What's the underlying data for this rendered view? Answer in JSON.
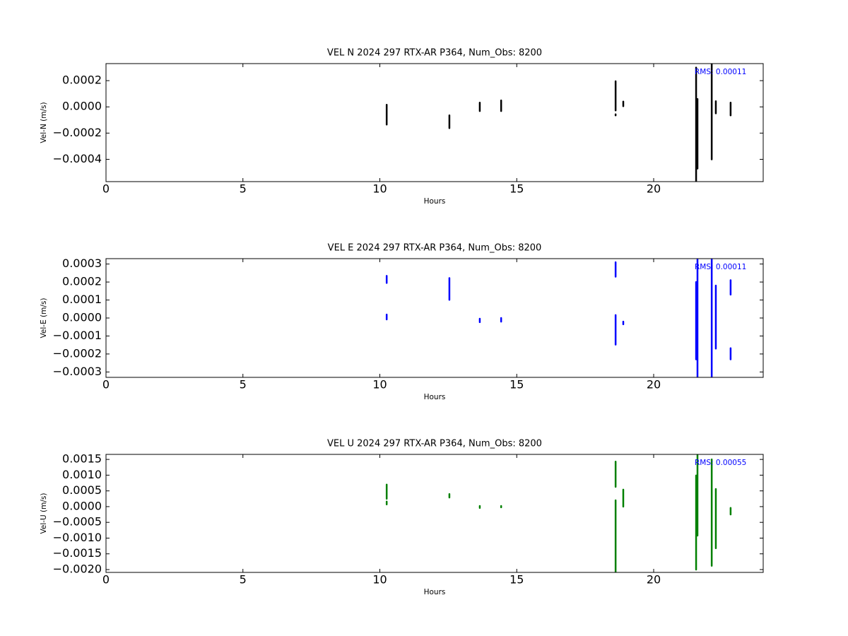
{
  "chart_data": [
    {
      "type": "line",
      "title": "VEL N 2024 297 RTX-AR  P364, Num_Obs: 8200",
      "x_label": "Hours",
      "y_label": "Vel-N (m/s)",
      "annotation": "RMS:  0.00011",
      "annotation_color": "#0000ff",
      "xlim": [
        0,
        24
      ],
      "xticks": [
        0,
        5,
        10,
        15,
        20
      ],
      "ylim": [
        -0.00057,
        0.00033
      ],
      "yticks": [
        0.0002,
        {
          "value": 0,
          "label": "0.0000"
        },
        {
          "value": -0.0002,
          "label": "−0.0002"
        },
        {
          "value": -0.0004,
          "label": "−0.0004"
        }
      ],
      "x": [
        10.25,
        10.25,
        null,
        12.54,
        12.54,
        null,
        13.65,
        13.65,
        null,
        14.43,
        14.43,
        null,
        18.61,
        18.61,
        null,
        18.61,
        18.61,
        null,
        18.89,
        18.89,
        null,
        21.55,
        21.55,
        null,
        21.6,
        21.6,
        null,
        22.12,
        22.12,
        null,
        22.27,
        22.27,
        null,
        22.81,
        22.81
      ],
      "series": [
        {
          "color": "#000000",
          "values": [
            1.6e-05,
            -0.000135,
            null,
            -6.5e-05,
            -0.000162,
            null,
            3.2e-05,
            -3.2e-05,
            null,
            4.9e-05,
            -3.2e-05,
            null,
            0.000195,
            -2.7e-05,
            null,
            -5.7e-05,
            -6.5e-05,
            null,
            4e-05,
            5e-06,
            null,
            0.0003,
            -0.00057,
            null,
            6e-05,
            -0.00047,
            null,
            0.00033,
            -0.0004,
            null,
            4.3e-05,
            -4.9e-05,
            null,
            3.2e-05,
            -6.5e-05
          ]
        }
      ]
    },
    {
      "type": "line",
      "title": "VEL E 2024 297 RTX-AR  P364, Num_Obs: 8200",
      "x_label": "Hours",
      "y_label": "Vel-E (m/s)",
      "annotation": "RMS:  0.00011",
      "annotation_color": "#0000ff",
      "xlim": [
        0,
        24
      ],
      "xticks": [
        0,
        5,
        10,
        15,
        20
      ],
      "ylim": [
        -0.00033,
        0.00033
      ],
      "yticks": [
        0.0003,
        0.0002,
        0.0001,
        {
          "value": 0,
          "label": "0.0000"
        },
        {
          "value": -0.0001,
          "label": "−0.0001"
        },
        {
          "value": -0.0002,
          "label": "−0.0002"
        },
        {
          "value": -0.0003,
          "label": "−0.0003"
        }
      ],
      "x": [
        10.25,
        10.25,
        null,
        10.25,
        10.25,
        null,
        12.54,
        12.54,
        null,
        13.65,
        13.65,
        null,
        14.43,
        14.43,
        null,
        18.61,
        18.61,
        null,
        18.61,
        18.61,
        null,
        18.89,
        18.89,
        null,
        21.55,
        21.55,
        null,
        21.6,
        21.6,
        null,
        22.12,
        22.12,
        null,
        22.27,
        22.27,
        null,
        22.81,
        22.81,
        null,
        22.81,
        22.81
      ],
      "series": [
        {
          "color": "#0000ff",
          "values": [
            0.000234,
            0.000195,
            null,
            1.9e-05,
            -8e-06,
            null,
            0.000222,
            0.000101,
            null,
            -4e-06,
            -2.3e-05,
            null,
            0,
            -2e-05,
            null,
            0.00031,
            0.00023,
            null,
            1.6e-05,
            -0.000148,
            null,
            -2e-05,
            -3.5e-05,
            null,
            0.0002,
            -0.00023,
            null,
            0.00033,
            -0.00033,
            null,
            0.00033,
            -0.00033,
            null,
            0.00018,
            -0.00017,
            null,
            0.00021,
            0.00013,
            null,
            -0.000168,
            -0.00023
          ]
        }
      ]
    },
    {
      "type": "line",
      "title": "VEL U 2024 297 RTX-AR  P364, Num_Obs: 8200",
      "x_label": "Hours",
      "y_label": "Vel-U (m/s)",
      "annotation": "RMS:  0.00055",
      "annotation_color": "#0000ff",
      "xlim": [
        0,
        24
      ],
      "xticks": [
        0,
        5,
        10,
        15,
        20
      ],
      "ylim": [
        -0.00209,
        0.00166
      ],
      "yticks": [
        0.0015,
        {
          "value": 0.001,
          "label": "0.0010"
        },
        0.0005,
        {
          "value": 0,
          "label": "0.0000"
        },
        {
          "value": -0.0005,
          "label": "−0.0005"
        },
        {
          "value": -0.001,
          "label": "−0.0010"
        },
        {
          "value": -0.0015,
          "label": "−0.0015"
        },
        {
          "value": -0.002,
          "label": "−0.0020"
        }
      ],
      "x": [
        10.25,
        10.25,
        null,
        10.25,
        10.25,
        null,
        12.54,
        12.54,
        null,
        13.65,
        13.65,
        null,
        14.43,
        14.43,
        null,
        18.61,
        18.61,
        null,
        18.61,
        18.61,
        null,
        18.89,
        18.89,
        null,
        21.55,
        21.55,
        null,
        21.6,
        21.6,
        null,
        22.12,
        22.12,
        null,
        22.27,
        22.27,
        null,
        22.81,
        22.81
      ],
      "series": [
        {
          "color": "#008000",
          "values": [
            0.0007,
            0.00025,
            null,
            0.00016,
            7e-05,
            null,
            0.0004,
            0.00029,
            null,
            2e-05,
            -4e-05,
            null,
            2e-05,
            -2e-05,
            null,
            0.00143,
            0.00063,
            null,
            0.0002,
            -0.00209,
            null,
            0.00054,
            0,
            null,
            0.00099,
            -0.002,
            null,
            0.00166,
            -0.00092,
            null,
            0.0015,
            -0.00188,
            null,
            0.00056,
            -0.00132,
            null,
            -4e-05,
            -0.00025
          ]
        }
      ]
    }
  ]
}
